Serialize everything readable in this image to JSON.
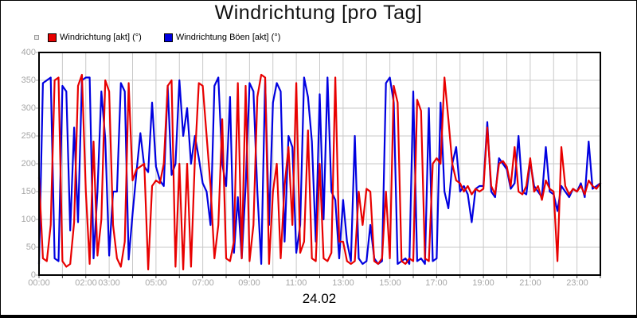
{
  "chart": {
    "title": "Windrichtung [pro Tag]",
    "xlabel": "24.02",
    "legend": [
      {
        "label": "Windrichtung [akt] (°)",
        "color": "#e80000"
      },
      {
        "label": "Windrichtung Böen [akt] (°)",
        "color": "#0000e0"
      }
    ]
  },
  "chart_data": {
    "type": "line",
    "title": "Windrichtung [pro Tag]",
    "xlabel": "24.02",
    "ylabel": "",
    "ylim": [
      0,
      400
    ],
    "xlim_hours": [
      0,
      24
    ],
    "y_ticks": [
      0,
      50,
      100,
      150,
      200,
      250,
      300,
      350,
      400
    ],
    "x_tick_hours": [
      0,
      1,
      2,
      3,
      4,
      5,
      6,
      7,
      8,
      9,
      10,
      11,
      12,
      13,
      14,
      15,
      16,
      17,
      18,
      19,
      20,
      21,
      22,
      23,
      24
    ],
    "x_tick_labels": [
      {
        "hour": 0,
        "label": "00:00"
      },
      {
        "hour": 2,
        "label": "02:00"
      },
      {
        "hour": 3,
        "label": "03:00"
      },
      {
        "hour": 5,
        "label": "05:00"
      },
      {
        "hour": 7,
        "label": "07:00"
      },
      {
        "hour": 9,
        "label": "09:00"
      },
      {
        "hour": 11,
        "label": "11:00"
      },
      {
        "hour": 13,
        "label": "13:00"
      },
      {
        "hour": 15,
        "label": "15:00"
      },
      {
        "hour": 17,
        "label": "17:00"
      },
      {
        "hour": 19,
        "label": "19:00"
      },
      {
        "hour": 21,
        "label": "21:00"
      },
      {
        "hour": 23,
        "label": "23:00"
      }
    ],
    "grid": true,
    "grid_color": "#c9c9c9",
    "frame_color": "#000000",
    "label_color": "#a6a6a6",
    "background": "#ffffff",
    "legend_position": "top-left",
    "x_minutes_step": 10,
    "series": [
      {
        "name": "Windrichtung [akt] (°)",
        "color": "#e80000",
        "values": [
          175,
          30,
          25,
          90,
          350,
          355,
          25,
          15,
          20,
          95,
          340,
          360,
          150,
          20,
          240,
          35,
          100,
          350,
          330,
          90,
          30,
          15,
          60,
          345,
          170,
          190,
          195,
          200,
          10,
          160,
          170,
          165,
          200,
          340,
          350,
          15,
          200,
          10,
          200,
          15,
          210,
          345,
          340,
          250,
          160,
          30,
          90,
          280,
          30,
          25,
          60,
          345,
          30,
          340,
          25,
          90,
          320,
          360,
          355,
          20,
          150,
          200,
          30,
          160,
          230,
          90,
          345,
          40,
          60,
          260,
          30,
          25,
          200,
          30,
          25,
          40,
          355,
          60,
          60,
          25,
          20,
          25,
          150,
          90,
          155,
          150,
          25,
          20,
          30,
          150,
          30,
          340,
          310,
          25,
          20,
          30,
          25,
          315,
          295,
          30,
          25,
          200,
          210,
          200,
          355,
          280,
          200,
          170,
          165,
          150,
          160,
          145,
          155,
          150,
          155,
          265,
          160,
          145,
          200,
          205,
          195,
          160,
          230,
          150,
          145,
          160,
          210,
          150,
          160,
          135,
          170,
          155,
          150,
          25,
          230,
          160,
          145,
          155,
          150,
          160,
          145,
          170,
          160,
          155,
          165
        ]
      },
      {
        "name": "Windrichtung Böen [akt] (°)",
        "color": "#0000e0",
        "values": [
          20,
          345,
          350,
          355,
          30,
          25,
          340,
          330,
          80,
          265,
          95,
          350,
          355,
          355,
          30,
          150,
          330,
          245,
          35,
          150,
          150,
          345,
          330,
          28,
          110,
          185,
          255,
          195,
          185,
          310,
          195,
          170,
          160,
          340,
          180,
          200,
          350,
          250,
          300,
          200,
          250,
          210,
          165,
          150,
          90,
          340,
          355,
          200,
          160,
          320,
          40,
          140,
          30,
          160,
          345,
          330,
          150,
          20,
          350,
          90,
          310,
          345,
          330,
          60,
          250,
          230,
          40,
          90,
          355,
          320,
          240,
          60,
          325,
          100,
          355,
          150,
          135,
          30,
          135,
          60,
          25,
          250,
          30,
          20,
          25,
          90,
          30,
          20,
          25,
          345,
          355,
          310,
          20,
          25,
          30,
          20,
          330,
          25,
          30,
          20,
          300,
          25,
          30,
          310,
          150,
          120,
          200,
          230,
          150,
          160,
          145,
          95,
          155,
          160,
          160,
          275,
          150,
          140,
          210,
          200,
          190,
          155,
          165,
          250,
          150,
          145,
          205,
          160,
          150,
          140,
          230,
          150,
          145,
          115,
          160,
          150,
          140,
          155,
          150,
          165,
          140,
          240,
          155,
          160,
          165
        ]
      }
    ]
  }
}
